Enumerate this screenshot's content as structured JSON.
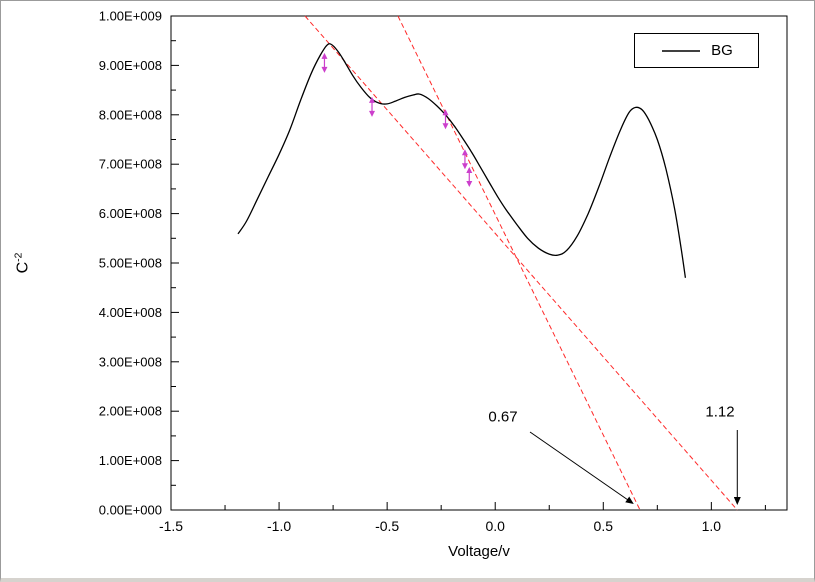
{
  "figure": {
    "background": "#ffffff",
    "frame_color": "#000000"
  },
  "chart_data": {
    "type": "line",
    "title": "",
    "x_axis": {
      "title": "Voltage/v",
      "min": -1.5,
      "max": 1.35,
      "ticks": [
        -1.5,
        -1.0,
        -0.5,
        0.0,
        0.5,
        1.0
      ],
      "tick_labels": [
        "-1.5",
        "-1.0",
        "-0.5",
        "0.0",
        "0.5",
        "1.0"
      ],
      "minor_step": 0.25
    },
    "y_axis": {
      "title_base": "C",
      "title_sup": "-2",
      "min": 0,
      "max": 1000000000.0,
      "ticks": [
        0,
        100000000.0,
        200000000.0,
        300000000.0,
        400000000.0,
        500000000.0,
        600000000.0,
        700000000.0,
        800000000.0,
        900000000.0,
        1000000000.0
      ],
      "tick_labels": [
        "0.00E+000",
        "1.00E+008",
        "2.00E+008",
        "3.00E+008",
        "4.00E+008",
        "5.00E+008",
        "6.00E+008",
        "7.00E+008",
        "8.00E+008",
        "9.00E+008",
        "1.00E+009"
      ],
      "minor_step": 50000000.0
    },
    "legend": {
      "label": "BG",
      "position": "top-right"
    },
    "series": [
      {
        "name": "BG",
        "color": "#000000",
        "points": [
          [
            -1.19,
            559000000.0
          ],
          [
            -1.15,
            585000000.0
          ],
          [
            -1.1,
            630000000.0
          ],
          [
            -1.05,
            675000000.0
          ],
          [
            -1.0,
            720000000.0
          ],
          [
            -0.95,
            770000000.0
          ],
          [
            -0.9,
            830000000.0
          ],
          [
            -0.85,
            885000000.0
          ],
          [
            -0.81,
            920000000.0
          ],
          [
            -0.78,
            940000000.0
          ],
          [
            -0.76,
            943000000.0
          ],
          [
            -0.73,
            930000000.0
          ],
          [
            -0.7,
            910000000.0
          ],
          [
            -0.66,
            880000000.0
          ],
          [
            -0.62,
            855000000.0
          ],
          [
            -0.58,
            835000000.0
          ],
          [
            -0.54,
            824000000.0
          ],
          [
            -0.5,
            822000000.0
          ],
          [
            -0.46,
            828000000.0
          ],
          [
            -0.42,
            835000000.0
          ],
          [
            -0.38,
            840000000.0
          ],
          [
            -0.35,
            842000000.0
          ],
          [
            -0.31,
            833000000.0
          ],
          [
            -0.27,
            818000000.0
          ],
          [
            -0.23,
            800000000.0
          ],
          [
            -0.19,
            778000000.0
          ],
          [
            -0.15,
            752000000.0
          ],
          [
            -0.11,
            725000000.0
          ],
          [
            -0.07,
            695000000.0
          ],
          [
            -0.03,
            665000000.0
          ],
          [
            0.01,
            635000000.0
          ],
          [
            0.05,
            608000000.0
          ],
          [
            0.1,
            578000000.0
          ],
          [
            0.15,
            550000000.0
          ],
          [
            0.2,
            530000000.0
          ],
          [
            0.25,
            518000000.0
          ],
          [
            0.29,
            516000000.0
          ],
          [
            0.33,
            525000000.0
          ],
          [
            0.38,
            555000000.0
          ],
          [
            0.43,
            600000000.0
          ],
          [
            0.48,
            655000000.0
          ],
          [
            0.53,
            715000000.0
          ],
          [
            0.58,
            770000000.0
          ],
          [
            0.62,
            805000000.0
          ],
          [
            0.65,
            815000000.0
          ],
          [
            0.68,
            810000000.0
          ],
          [
            0.71,
            790000000.0
          ],
          [
            0.75,
            750000000.0
          ],
          [
            0.79,
            690000000.0
          ],
          [
            0.83,
            610000000.0
          ],
          [
            0.86,
            530000000.0
          ],
          [
            0.88,
            470000000.0
          ]
        ]
      }
    ],
    "fit_lines": [
      {
        "color": "#ff2a2a",
        "dash": "5 3",
        "points": [
          [
            -0.45,
            1000000000.0
          ],
          [
            0.67,
            0
          ]
        ],
        "x_intercept": 0.67
      },
      {
        "color": "#ff2a2a",
        "dash": "5 3",
        "points": [
          [
            -0.88,
            1000000000.0
          ],
          [
            1.12,
            0
          ]
        ],
        "x_intercept": 1.12
      }
    ],
    "markers": {
      "color": "#cc3fcc",
      "shape": "vertical-double-arrow",
      "points": [
        [
          -0.79,
          905000000.0
        ],
        [
          -0.57,
          816000000.0
        ],
        [
          -0.23,
          791000000.0
        ],
        [
          -0.14,
          710000000.0
        ],
        [
          -0.12,
          674000000.0
        ]
      ]
    },
    "annotations": [
      {
        "text": "0.67",
        "points_to_x": 0.67
      },
      {
        "text": "1.12",
        "points_to_x": 1.12
      }
    ]
  }
}
